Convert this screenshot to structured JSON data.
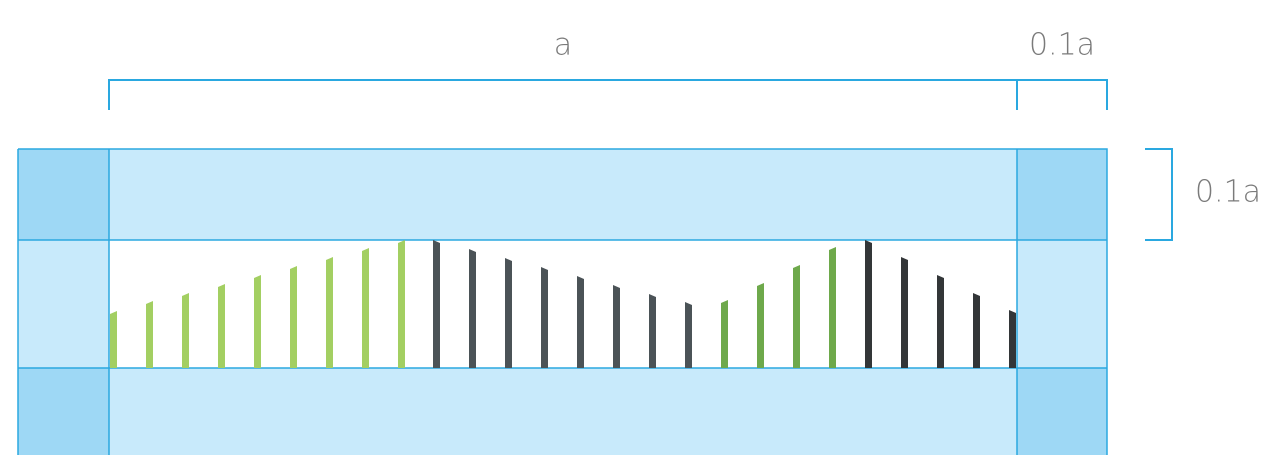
{
  "labels": {
    "width": "a",
    "margin_width": "0.1a",
    "margin_height": "0.1a"
  }
}
